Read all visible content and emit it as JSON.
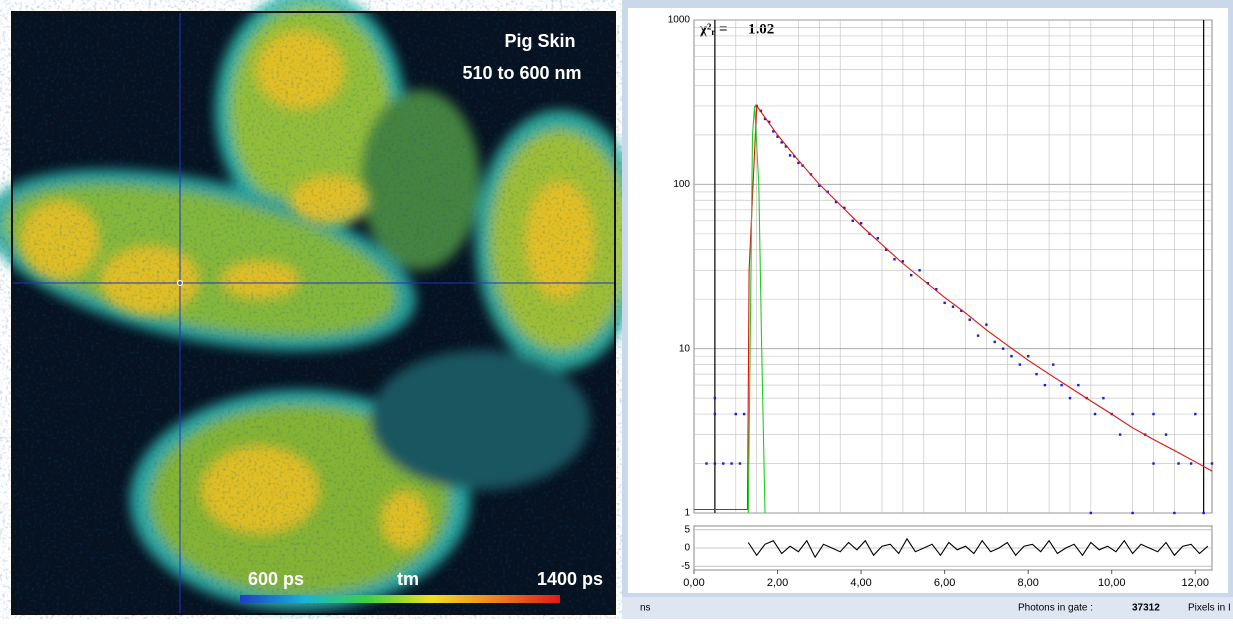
{
  "image": {
    "title": "Pig Skin",
    "subtitle": "510 to 600 nm",
    "colorbar": {
      "min_label": "600 ps",
      "label": "tm",
      "max_label": "1400 ps"
    }
  },
  "chart_data": [
    {
      "type": "decay",
      "log_y": true,
      "grid": true,
      "fit_label": "χ²ᵣ =",
      "fit_value": 1.02,
      "xlim": [
        0,
        12.4
      ],
      "ylim": [
        1,
        1000
      ],
      "yticks": [
        1,
        10,
        100,
        1000
      ],
      "y_minor_ticks": [
        2,
        3,
        4,
        5,
        6,
        7,
        8,
        9,
        20,
        30,
        40,
        50,
        60,
        70,
        80,
        90,
        200,
        300,
        400,
        500,
        600,
        700,
        800,
        900
      ],
      "x_minor_ticks": [
        0.5,
        1,
        1.5,
        2.5,
        3,
        3.5,
        4.5,
        5,
        5.5,
        6.5,
        7,
        7.5,
        8.5,
        9,
        9.5,
        10.5,
        11,
        11.5,
        12.5
      ],
      "cursors": [
        0.5,
        12.2
      ],
      "series": [
        {
          "mode": "points",
          "color": "#1a1ad8",
          "x": [
            0.3,
            0.5,
            0.5,
            0.5,
            0.7,
            0.9,
            1.0,
            1.1,
            1.2,
            1.5,
            1.6,
            1.7,
            1.8,
            1.9,
            2.0,
            2.1,
            2.2,
            2.3,
            2.4,
            2.5,
            2.6,
            2.8,
            3.0,
            3.2,
            3.4,
            3.6,
            3.8,
            4.0,
            4.2,
            4.4,
            4.6,
            4.8,
            5.0,
            5.2,
            5.4,
            5.6,
            5.8,
            6.0,
            6.2,
            6.4,
            6.6,
            6.8,
            7.0,
            7.2,
            7.4,
            7.6,
            7.8,
            8.0,
            8.2,
            8.4,
            8.6,
            8.8,
            9.0,
            9.2,
            9.4,
            9.6,
            9.8,
            10.0,
            10.2,
            10.5,
            10.8,
            11.0,
            11.3,
            11.6,
            11.9,
            12.2,
            12.4,
            9.5,
            10.5,
            11.5,
            12.0,
            11.0
          ],
          "values": [
            2,
            5,
            4,
            2,
            2,
            2,
            4,
            2,
            4,
            300,
            280,
            250,
            240,
            210,
            195,
            180,
            170,
            150,
            148,
            135,
            130,
            115,
            98,
            90,
            78,
            72,
            60,
            58,
            50,
            47,
            40,
            35,
            34,
            28,
            30,
            25,
            23,
            19,
            18,
            17,
            15,
            12,
            14,
            11,
            10,
            9,
            8,
            9,
            7,
            6,
            8,
            6,
            5,
            6,
            5,
            4,
            5,
            4,
            3,
            4,
            3,
            2,
            3,
            2,
            2,
            1,
            2,
            1,
            1,
            1,
            4,
            4
          ]
        },
        {
          "mode": "line",
          "color": "#e01010",
          "x": [
            0,
            1.28,
            1.32,
            1.5,
            2,
            2.5,
            3,
            3.5,
            4,
            4.5,
            5,
            5.5,
            6,
            6.5,
            7,
            7.5,
            8,
            8.5,
            9,
            9.5,
            10,
            10.5,
            11,
            11.5,
            12,
            12.4
          ],
          "values": [
            1.05,
            1.05,
            30,
            300,
            200,
            140,
            100,
            75,
            56,
            43,
            33,
            26,
            20.5,
            16.5,
            13,
            10.5,
            8.5,
            7,
            5.8,
            4.8,
            4,
            3.3,
            2.8,
            2.4,
            2.05,
            1.8
          ]
        },
        {
          "mode": "line",
          "color": "#22cc22",
          "x": [
            1.3,
            1.4,
            1.45,
            1.55,
            1.62,
            1.7
          ],
          "values": [
            1,
            200,
            300,
            100,
            10,
            1
          ]
        }
      ]
    },
    {
      "type": "residuals",
      "xlim": [
        0,
        12.4
      ],
      "ylim": [
        -6,
        6
      ],
      "yticks": [
        5,
        0,
        -5
      ],
      "xticks": [
        {
          "value": 0,
          "label": "0,00"
        },
        {
          "value": 2,
          "label": "2,00"
        },
        {
          "value": 4,
          "label": "4,00"
        },
        {
          "value": 6,
          "label": "6,00"
        },
        {
          "value": 8,
          "label": "8,00"
        },
        {
          "value": 10,
          "label": "10,00"
        },
        {
          "value": 12,
          "label": "12,00"
        }
      ],
      "series": [
        {
          "mode": "line",
          "color": "#000000",
          "x": [
            1.3,
            1.5,
            1.7,
            1.9,
            2.1,
            2.3,
            2.5,
            2.7,
            2.9,
            3.1,
            3.3,
            3.5,
            3.7,
            3.9,
            4.1,
            4.3,
            4.5,
            4.7,
            4.9,
            5.1,
            5.3,
            5.5,
            5.7,
            5.9,
            6.1,
            6.3,
            6.5,
            6.7,
            6.9,
            7.1,
            7.3,
            7.5,
            7.7,
            7.9,
            8.1,
            8.3,
            8.5,
            8.7,
            8.9,
            9.1,
            9.3,
            9.5,
            9.7,
            9.9,
            10.1,
            10.3,
            10.5,
            10.7,
            10.9,
            11.1,
            11.3,
            11.5,
            11.7,
            11.9,
            12.1,
            12.3
          ],
          "values": [
            1.5,
            -2,
            1,
            2,
            -1.5,
            0.5,
            -1,
            2,
            -2.5,
            1,
            0,
            -1,
            1.5,
            -0.5,
            2,
            -2,
            0.5,
            1,
            -1.5,
            2.5,
            -1,
            0,
            1,
            -2,
            1.5,
            -0.5,
            0.5,
            -1.5,
            2,
            -1,
            0,
            1.5,
            -2,
            0.5,
            1,
            -1,
            2,
            -1.5,
            0,
            1,
            -2,
            1.5,
            -0.5,
            0.5,
            -1,
            2,
            -1.5,
            1,
            0,
            -1,
            1.5,
            -2,
            0.5,
            1,
            -1.5,
            0.5
          ]
        }
      ]
    }
  ],
  "status": {
    "unit": "ns",
    "photons_label": "Photons in gate :",
    "photons": 37312,
    "pixels_label": "Pixels in I"
  }
}
